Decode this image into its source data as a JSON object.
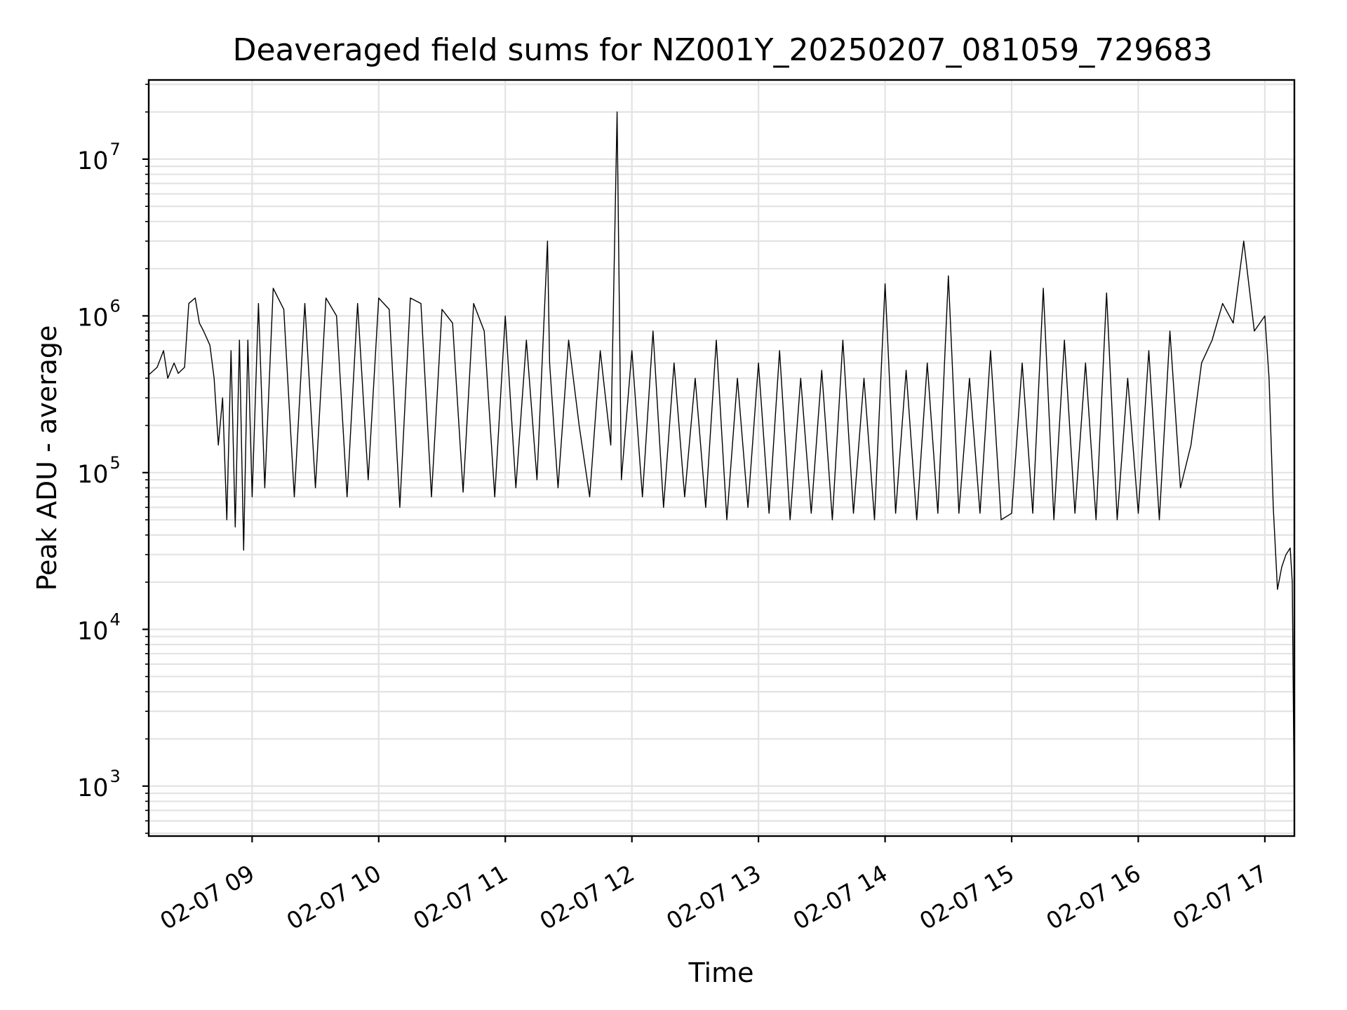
{
  "chart_data": {
    "type": "line",
    "title": "Deaveraged field sums for NZ001Y_20250207_081059_729683",
    "xlabel": "Time",
    "ylabel": "Peak ADU - average",
    "yscale": "log",
    "ylim": [
      480,
      32000000
    ],
    "xlim": [
      "2025-02-07 08:11",
      "2025-02-07 17:14"
    ],
    "x_tick_labels": [
      "02-07 09",
      "02-07 10",
      "02-07 11",
      "02-07 12",
      "02-07 13",
      "02-07 14",
      "02-07 15",
      "02-07 16",
      "02-07 17"
    ],
    "y_tick_labels": [
      {
        "base": "10",
        "exp": "3",
        "value": 1000
      },
      {
        "base": "10",
        "exp": "4",
        "value": 10000
      },
      {
        "base": "10",
        "exp": "5",
        "value": 100000
      },
      {
        "base": "10",
        "exp": "6",
        "value": 1000000
      },
      {
        "base": "10",
        "exp": "7",
        "value": 10000000
      }
    ],
    "grid": true,
    "line_color": "#000000",
    "series": [
      {
        "x": [
          "08:11",
          "08:15",
          "08:18",
          "08:20",
          "08:23",
          "08:25",
          "08:28",
          "08:30",
          "08:33",
          "08:35",
          "08:37",
          "08:40",
          "08:42",
          "08:44",
          "08:46",
          "08:48",
          "08:50",
          "08:52",
          "08:54",
          "08:56",
          "08:58",
          "09:00",
          "09:03",
          "09:06",
          "09:10",
          "09:15",
          "09:20",
          "09:25",
          "09:30",
          "09:35",
          "09:40",
          "09:45",
          "09:50",
          "09:55",
          "10:00",
          "10:05",
          "10:10",
          "10:15",
          "10:20",
          "10:25",
          "10:30",
          "10:35",
          "10:40",
          "10:45",
          "10:50",
          "10:55",
          "11:00",
          "11:05",
          "11:10",
          "11:15",
          "11:20",
          "11:21",
          "11:25",
          "11:30",
          "11:35",
          "11:40",
          "11:45",
          "11:50",
          "11:53",
          "11:55",
          "12:00",
          "12:05",
          "12:10",
          "12:15",
          "12:20",
          "12:25",
          "12:30",
          "12:35",
          "12:40",
          "12:45",
          "12:50",
          "12:55",
          "13:00",
          "13:05",
          "13:10",
          "13:15",
          "13:20",
          "13:25",
          "13:30",
          "13:35",
          "13:40",
          "13:45",
          "13:50",
          "13:55",
          "14:00",
          "14:05",
          "14:10",
          "14:15",
          "14:20",
          "14:25",
          "14:30",
          "14:35",
          "14:40",
          "14:45",
          "14:50",
          "14:55",
          "15:00",
          "15:05",
          "15:10",
          "15:15",
          "15:20",
          "15:25",
          "15:30",
          "15:35",
          "15:40",
          "15:45",
          "15:50",
          "15:55",
          "16:00",
          "16:05",
          "16:10",
          "16:15",
          "16:20",
          "16:25",
          "16:30",
          "16:35",
          "16:40",
          "16:45",
          "16:50",
          "16:55",
          "17:00",
          "17:02",
          "17:04",
          "17:06",
          "17:08",
          "17:10",
          "17:12",
          "17:13",
          "17:14"
        ],
        "y": [
          420000,
          470000,
          600000,
          400000,
          500000,
          430000,
          470000,
          1200000,
          1300000,
          900000,
          800000,
          650000,
          400000,
          150000,
          300000,
          50000,
          600000,
          45000,
          700000,
          32000,
          700000,
          70000,
          1200000,
          80000,
          1500000,
          1100000,
          70000,
          1200000,
          80000,
          1300000,
          1000000,
          70000,
          1200000,
          90000,
          1300000,
          1100000,
          60000,
          1300000,
          1200000,
          70000,
          1100000,
          900000,
          75000,
          1200000,
          800000,
          70000,
          1000000,
          80000,
          700000,
          90000,
          3000000,
          500000,
          80000,
          700000,
          200000,
          70000,
          600000,
          150000,
          20000000,
          90000,
          600000,
          70000,
          800000,
          60000,
          500000,
          70000,
          400000,
          60000,
          700000,
          50000,
          400000,
          60000,
          500000,
          55000,
          600000,
          50000,
          400000,
          55000,
          450000,
          50000,
          700000,
          55000,
          400000,
          50000,
          1600000,
          55000,
          450000,
          50000,
          500000,
          55000,
          1800000,
          55000,
          400000,
          55000,
          600000,
          50000,
          55000,
          500000,
          55000,
          1500000,
          50000,
          700000,
          55000,
          500000,
          50000,
          1400000,
          50000,
          400000,
          55000,
          600000,
          50000,
          800000,
          80000,
          150000,
          500000,
          700000,
          1200000,
          900000,
          3000000,
          800000,
          1000000,
          400000,
          60000,
          18000,
          25000,
          30000,
          33000,
          20000,
          600
        ]
      }
    ]
  }
}
